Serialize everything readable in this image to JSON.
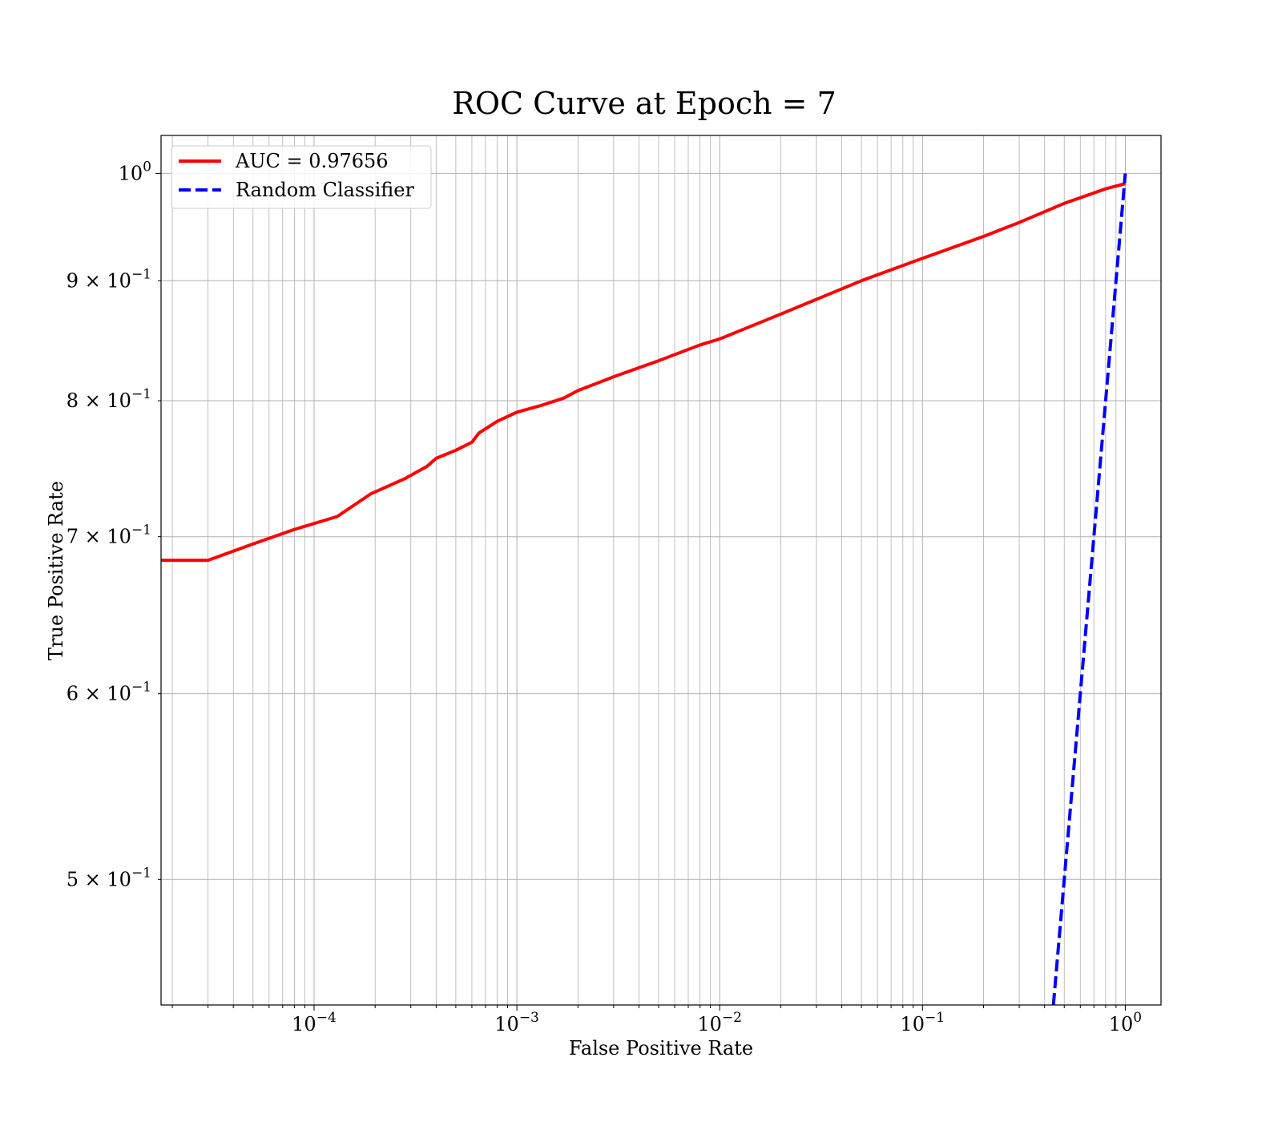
{
  "chart_data": {
    "type": "line",
    "title": "ROC Curve at Epoch = 7",
    "xlabel": "False Positive Rate",
    "ylabel": "True Positive Rate",
    "xscale": "log",
    "yscale": "log",
    "xlim": [
      1.76e-05,
      1.5
    ],
    "ylim": [
      0.442,
      1.038
    ],
    "grid": "both major and minor",
    "legend_position": "top-left",
    "x_major_ticks": [
      {
        "value": 0.0001,
        "base": "10",
        "exp": "−4"
      },
      {
        "value": 0.001,
        "base": "10",
        "exp": "−3"
      },
      {
        "value": 0.01,
        "base": "10",
        "exp": "−2"
      },
      {
        "value": 0.1,
        "base": "10",
        "exp": "−1"
      },
      {
        "value": 1,
        "base": "10",
        "exp": "0"
      }
    ],
    "y_major_ticks": [
      {
        "value": 1,
        "mant": "",
        "base": "10",
        "exp": "0"
      }
    ],
    "y_minor_ticks": [
      {
        "value": 0.5,
        "mant": "5 × ",
        "base": "10",
        "exp": "−1"
      },
      {
        "value": 0.6,
        "mant": "6 × ",
        "base": "10",
        "exp": "−1"
      },
      {
        "value": 0.7,
        "mant": "7 × ",
        "base": "10",
        "exp": "−1"
      },
      {
        "value": 0.8,
        "mant": "8 × ",
        "base": "10",
        "exp": "−1"
      },
      {
        "value": 0.9,
        "mant": "9 × ",
        "base": "10",
        "exp": "−1"
      }
    ],
    "series": [
      {
        "name": "AUC = 0.97656",
        "color": "#ff0000",
        "style": "solid",
        "x": [
          1.76e-05,
          3e-05,
          5e-05,
          8e-05,
          0.00013,
          0.00019,
          0.00028,
          0.00036,
          0.0004,
          0.0005,
          0.0006,
          0.00065,
          0.0008,
          0.001,
          0.0013,
          0.0017,
          0.002,
          0.003,
          0.005,
          0.008,
          0.01,
          0.02,
          0.05,
          0.1,
          0.2,
          0.3,
          0.5,
          0.8,
          1.0
        ],
        "y": [
          0.684,
          0.684,
          0.695,
          0.705,
          0.714,
          0.73,
          0.741,
          0.75,
          0.756,
          0.762,
          0.768,
          0.775,
          0.784,
          0.791,
          0.796,
          0.802,
          0.808,
          0.819,
          0.832,
          0.845,
          0.85,
          0.871,
          0.9,
          0.92,
          0.94,
          0.953,
          0.971,
          0.985,
          0.99
        ]
      },
      {
        "name": "Random Classifier",
        "color": "#0000ff",
        "style": "dashed",
        "x": [
          0.442,
          1.0
        ],
        "y": [
          0.442,
          1.0
        ]
      }
    ]
  }
}
